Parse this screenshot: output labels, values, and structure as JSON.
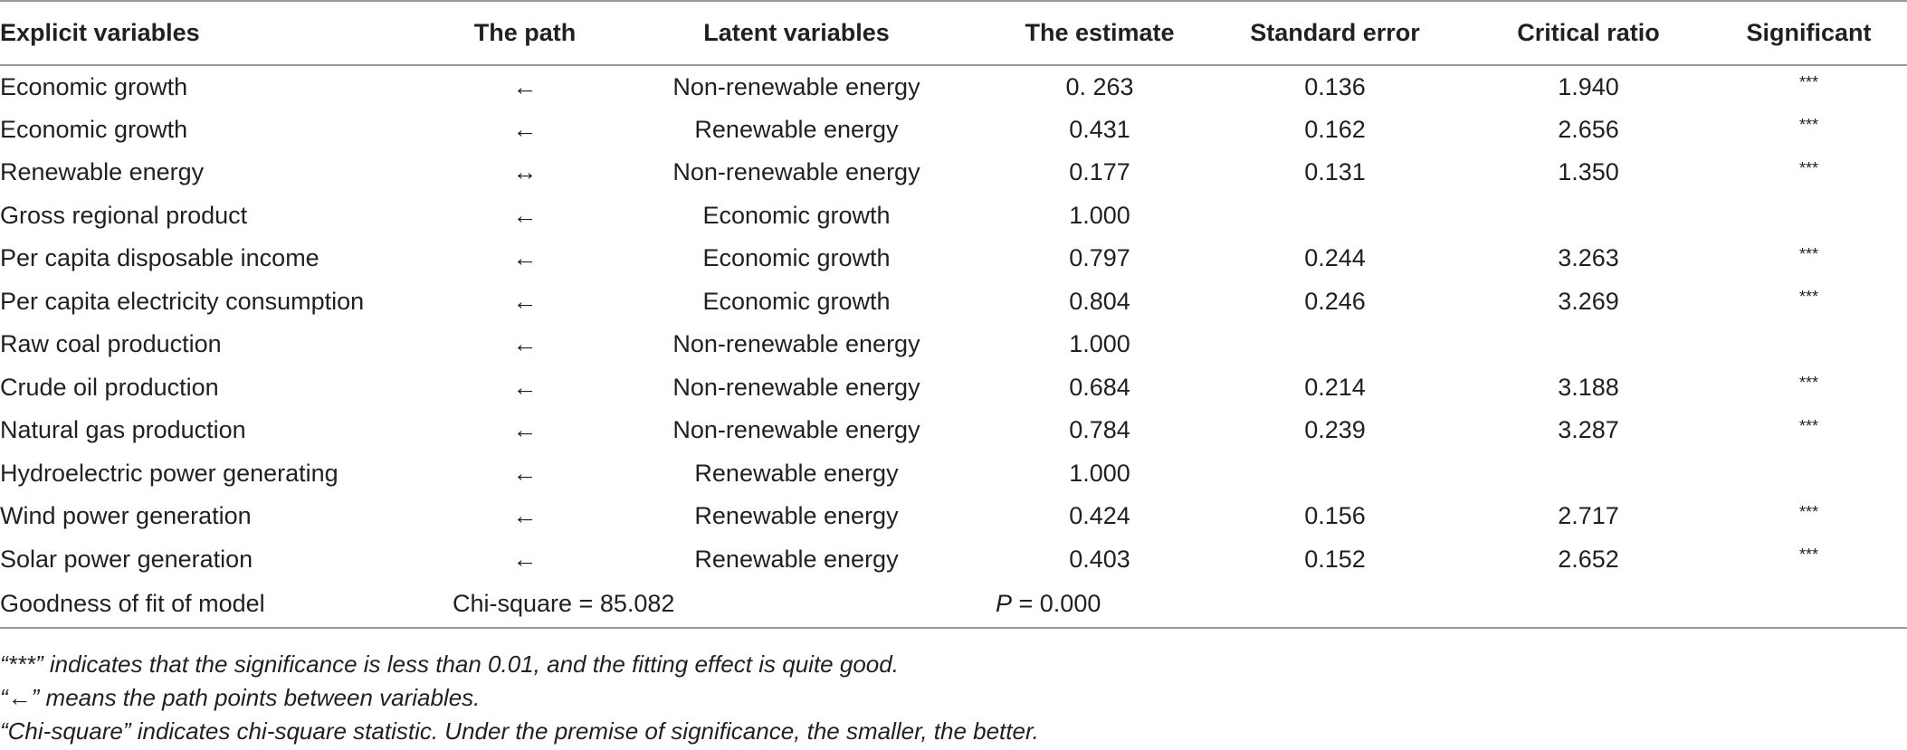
{
  "table": {
    "headers": [
      "Explicit variables",
      "The path",
      "Latent variables",
      "The estimate",
      "Standard error",
      "Critical ratio",
      "Significant"
    ],
    "rows": [
      [
        "Economic growth",
        "←",
        "Non-renewable energy",
        "0. 263",
        "0.136",
        "1.940",
        "***"
      ],
      [
        "Economic growth",
        "←",
        "Renewable energy",
        "0.431",
        "0.162",
        "2.656",
        "***"
      ],
      [
        "Renewable energy",
        "↔",
        "Non-renewable energy",
        "0.177",
        "0.131",
        "1.350",
        "***"
      ],
      [
        "Gross regional product",
        "←",
        "Economic growth",
        "1.000",
        "",
        "",
        ""
      ],
      [
        "Per capita disposable income",
        "←",
        "Economic growth",
        "0.797",
        "0.244",
        "3.263",
        "***"
      ],
      [
        "Per capita electricity consumption",
        "←",
        "Economic growth",
        "0.804",
        "0.246",
        "3.269",
        "***"
      ],
      [
        "Raw coal production",
        "←",
        "Non-renewable energy",
        "1.000",
        "",
        "",
        ""
      ],
      [
        "Crude oil production",
        "←",
        "Non-renewable energy",
        "0.684",
        "0.214",
        "3.188",
        "***"
      ],
      [
        "Natural gas production",
        "←",
        "Non-renewable energy",
        "0.784",
        "0.239",
        "3.287",
        "***"
      ],
      [
        "Hydroelectric power generating",
        "←",
        "Renewable energy",
        "1.000",
        "",
        "",
        ""
      ],
      [
        "Wind power generation",
        "←",
        "Renewable energy",
        "0.424",
        "0.156",
        "2.717",
        "***"
      ],
      [
        "Solar power generation",
        "←",
        "Renewable energy",
        "0.403",
        "0.152",
        "2.652",
        "***"
      ]
    ],
    "fit": {
      "label": "Goodness of fit of model",
      "chi": "Chi-square = 85.082",
      "p_symbol": "P",
      "p_rest": " = 0.000"
    }
  },
  "notes": [
    "“***” indicates that the significance is less than 0.01, and the fitting effect is quite good.",
    "“←” means the path points between variables.",
    "“Chi-square” indicates chi-square statistic. Under the premise of significance, the smaller, the better."
  ]
}
